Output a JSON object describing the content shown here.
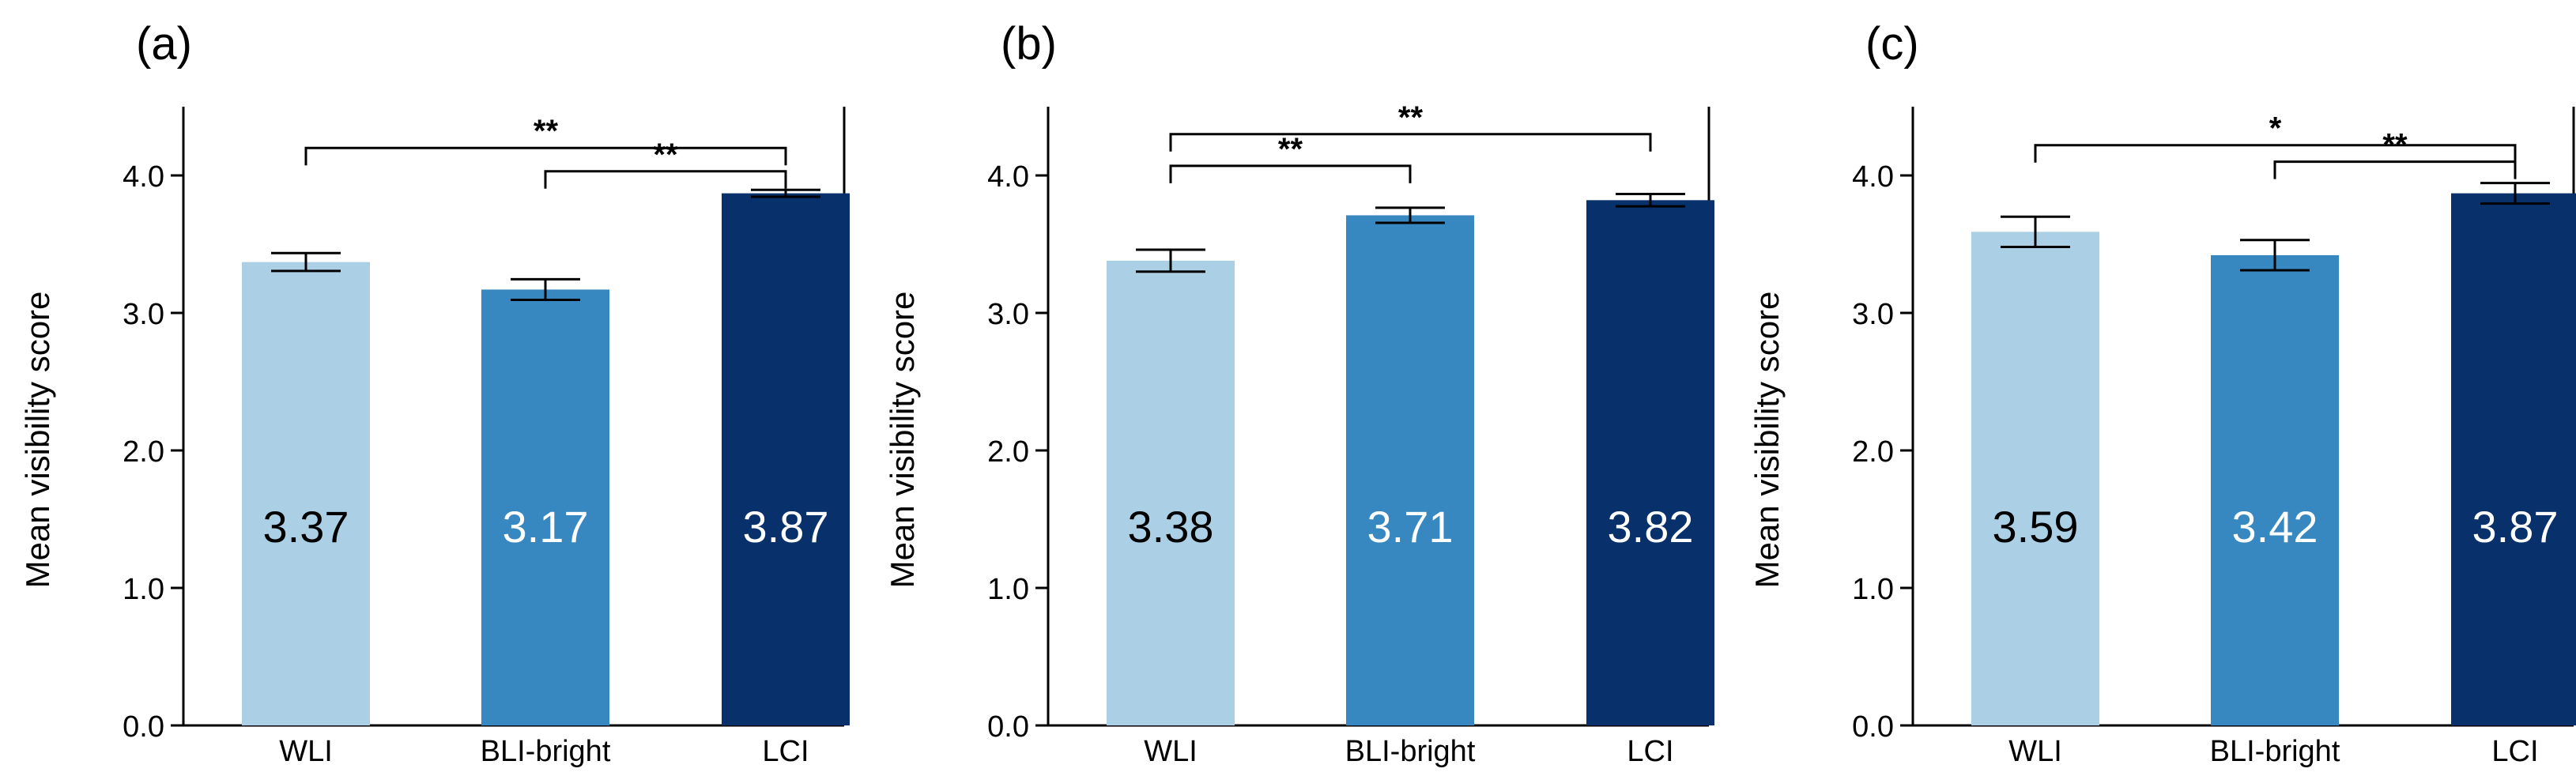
{
  "chart_data": [
    {
      "type": "bar",
      "panel_label": "(a)",
      "categories": [
        "WLI",
        "BLI-bright",
        "LCI"
      ],
      "values": [
        3.37,
        3.17,
        3.87
      ],
      "value_labels": [
        "3.37",
        "3.17",
        "3.87"
      ],
      "error": [
        0.065,
        0.075,
        0.025
      ],
      "ylabel": "Mean visibility score",
      "ylim": [
        0,
        4.5
      ],
      "yticks": [
        "0.0",
        "1.0",
        "2.0",
        "3.0",
        "4.0"
      ],
      "significance": [
        {
          "from": 0,
          "to": 2,
          "label": "**",
          "y": 4.2
        },
        {
          "from": 1,
          "to": 2,
          "label": "**",
          "y": 4.03
        }
      ]
    },
    {
      "type": "bar",
      "panel_label": "(b)",
      "categories": [
        "WLI",
        "BLI-bright",
        "LCI"
      ],
      "values": [
        3.38,
        3.71,
        3.82
      ],
      "value_labels": [
        "3.38",
        "3.71",
        "3.82"
      ],
      "error": [
        0.08,
        0.055,
        0.045
      ],
      "ylabel": "Mean visibility score",
      "ylim": [
        0,
        4.5
      ],
      "yticks": [
        "0.0",
        "1.0",
        "2.0",
        "3.0",
        "4.0"
      ],
      "significance": [
        {
          "from": 0,
          "to": 2,
          "label": "**",
          "y": 4.3
        },
        {
          "from": 0,
          "to": 1,
          "label": "**",
          "y": 4.07
        }
      ]
    },
    {
      "type": "bar",
      "panel_label": "(c)",
      "categories": [
        "WLI",
        "BLI-bright",
        "LCI"
      ],
      "values": [
        3.59,
        3.42,
        3.87
      ],
      "value_labels": [
        "3.59",
        "3.42",
        "3.87"
      ],
      "error": [
        0.11,
        0.11,
        0.075
      ],
      "ylabel": "Mean visibility score",
      "ylim": [
        0,
        4.5
      ],
      "yticks": [
        "0.0",
        "1.0",
        "2.0",
        "3.0",
        "4.0"
      ],
      "significance": [
        {
          "from": 0,
          "to": 2,
          "label": "*",
          "y": 4.22
        },
        {
          "from": 1,
          "to": 2,
          "label": "**",
          "y": 4.1
        }
      ]
    }
  ],
  "colors": {
    "bars": [
      "#abd0e6",
      "#3787c0",
      "#08306b"
    ],
    "value_text": [
      "#000000",
      "#ffffff",
      "#ffffff"
    ],
    "axis": "#000000"
  }
}
